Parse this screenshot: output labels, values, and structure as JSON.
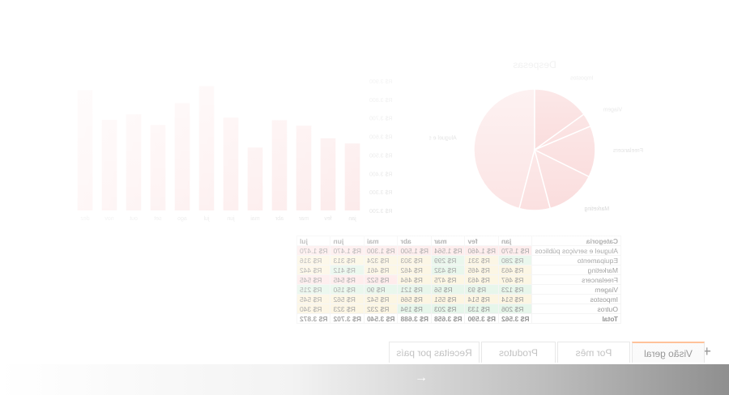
{
  "app": {
    "title": ""
  },
  "tabs": [
    {
      "label": "Visão geral",
      "active": true
    },
    {
      "label": "Por mês",
      "active": false
    },
    {
      "label": "Produtos",
      "active": false
    },
    {
      "label": "Receitas por país",
      "active": false
    }
  ],
  "add_tab_icon": "plus-icon",
  "navigation_icon": "arrow-right-icon",
  "table": {
    "headers": [
      "Categoria",
      "jan",
      "fev",
      "mar",
      "abr",
      "mai",
      "jun",
      "jul"
    ],
    "rows": [
      [
        "Aluguel e serviços públicos",
        "R$ 1.570",
        "R$ 1.460",
        "R$ 1.564",
        "R$ 1.500",
        "R$ 1.300",
        "R$ 1.470",
        "R$ 1.470"
      ],
      [
        "Equipamento",
        "R$ 280",
        "R$ 331",
        "R$ 299",
        "R$ 303",
        "R$ 324",
        "R$ 313",
        "R$ 316"
      ],
      [
        "Marketing",
        "R$ 463",
        "R$ 465",
        "R$ 432",
        "R$ 462",
        "R$ 461",
        "R$ 412",
        "R$ 442"
      ],
      [
        "Freelancers",
        "R$ 467",
        "R$ 463",
        "R$ 475",
        "R$ 464",
        "R$ 522",
        "R$ 545",
        "R$ 545"
      ],
      [
        "Viagem",
        "R$ 123",
        "R$ 93",
        "R$ 56",
        "R$ 121",
        "R$ 90",
        "R$ 150",
        "R$ 215"
      ],
      [
        "Impostos",
        "R$ 514",
        "R$ 514",
        "R$ 551",
        "R$ 566",
        "R$ 542",
        "R$ 562",
        "R$ 545"
      ],
      [
        "Outros",
        "R$ 206",
        "R$ 133",
        "R$ 203",
        "R$ 194",
        "R$ 232",
        "R$ 323",
        "R$ 340"
      ],
      [
        "Total",
        "R$ 3.562",
        "R$ 3.590",
        "R$ 3.658",
        "R$ 3.688",
        "R$ 3.540",
        "R$ 3.702",
        "R$ 3.872"
      ]
    ],
    "row_colors": [
      [
        "#fde3e3",
        "#fde3e3",
        "#fde3e3",
        "#fde3e3",
        "#fde3e3",
        "#fde3e3",
        "#fde3e3"
      ],
      [
        "#dff3e4",
        "#fbf2d8",
        "#dff3e4",
        "#fbf2d8",
        "#fbf2d8",
        "#fbf2d8",
        "#fbf2d8"
      ],
      [
        "#fbf2d8",
        "#fbf2d8",
        "#dff3e4",
        "#fbf2d8",
        "#fbf2d8",
        "#dff3e4",
        "#fbf2d8"
      ],
      [
        "#fbf2d8",
        "#fbf2d8",
        "#fbf2d8",
        "#fbf2d8",
        "#fde3e3",
        "#fde3e3",
        "#fde3e3"
      ],
      [
        "#dff3e4",
        "#dff3e4",
        "#dff3e4",
        "#dff3e4",
        "#dff3e4",
        "#dff3e4",
        "#dff3e4"
      ],
      [
        "#fbf2d8",
        "#fbf2d8",
        "#fbf2d8",
        "#fbf2d8",
        "#fbf2d8",
        "#fbf2d8",
        "#fbf2d8"
      ],
      [
        "#dff3e4",
        "#dff3e4",
        "#dff3e4",
        "#dff3e4",
        "#fbf2d8",
        "#fbf2d8",
        "#fbf2d8"
      ],
      [
        "#ffffff",
        "#ffffff",
        "#ffffff",
        "#ffffff",
        "#ffffff",
        "#ffffff",
        "#ffffff"
      ]
    ]
  },
  "chart_data": [
    {
      "type": "bar",
      "categories": [
        "jan",
        "fev",
        "mar",
        "abr",
        "mai",
        "jun",
        "jul",
        "ago",
        "set",
        "out",
        "nov",
        "dez"
      ],
      "values": [
        3562,
        3590,
        3658,
        3688,
        3540,
        3702,
        3872,
        3780,
        3662,
        3720,
        3690,
        3850
      ],
      "ylim": [
        3200,
        3900
      ],
      "yticks": [
        "R$ 3.200",
        "R$ 3.300",
        "R$ 3.400",
        "R$ 3.500",
        "R$ 3.600",
        "R$ 3.700",
        "R$ 3.800",
        "R$ 3.900"
      ],
      "color": "#f7c3c3"
    },
    {
      "type": "pie",
      "title": "Despesas",
      "labels": [
        "Aluguel e serviços públicos",
        "Equipamento",
        "Marketing",
        "Freelancers",
        "Viagem",
        "Impostos"
      ],
      "values": [
        1570,
        280,
        463,
        467,
        123,
        514
      ],
      "color": "#f2a3a3"
    }
  ]
}
